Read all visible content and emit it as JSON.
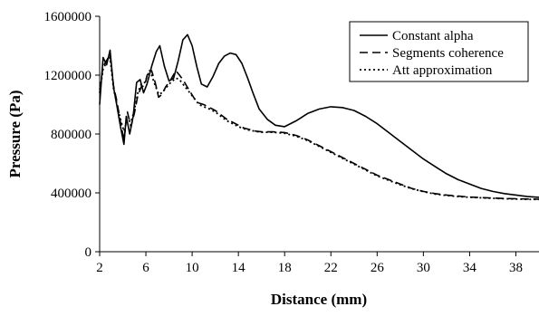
{
  "chart_data": {
    "type": "line",
    "title": "",
    "xlabel": "Distance (mm)",
    "ylabel": "Pressure (Pa)",
    "xlim": [
      2,
      40
    ],
    "ylim": [
      0,
      1600000
    ],
    "x_ticks": [
      2,
      6,
      10,
      14,
      18,
      22,
      26,
      30,
      34,
      38
    ],
    "x_tick_labels": [
      "2",
      "6",
      "10",
      "14",
      "18",
      "22",
      "26",
      "30",
      "34",
      "38"
    ],
    "y_ticks": [
      0,
      400000,
      800000,
      1200000,
      1600000
    ],
    "y_tick_labels": [
      "0",
      "400000",
      "800000",
      "1200000",
      "1600000"
    ],
    "grid": false,
    "legend_position": "top-right",
    "series": [
      {
        "name": "Constant alpha",
        "style": "solid",
        "x": [
          2.0,
          2.3,
          2.6,
          2.9,
          3.2,
          3.5,
          3.8,
          4.1,
          4.3,
          4.6,
          4.9,
          5.2,
          5.5,
          5.8,
          6.1,
          6.5,
          6.9,
          7.2,
          7.6,
          8.0,
          8.4,
          8.8,
          9.2,
          9.6,
          10.0,
          10.4,
          10.8,
          11.3,
          11.8,
          12.3,
          12.8,
          13.3,
          13.8,
          14.3,
          14.8,
          15.3,
          15.8,
          16.5,
          17.2,
          18.0,
          19.0,
          20.0,
          21.0,
          22.0,
          23.0,
          24.0,
          25.0,
          26.0,
          27.0,
          28.0,
          29.0,
          30.0,
          31.0,
          32.0,
          33.0,
          34.0,
          35.0,
          36.0,
          37.0,
          38.0,
          39.0,
          40.0
        ],
        "y": [
          1000000,
          1320000,
          1270000,
          1370000,
          1120000,
          990000,
          850000,
          730000,
          920000,
          800000,
          920000,
          1150000,
          1170000,
          1080000,
          1140000,
          1260000,
          1360000,
          1400000,
          1260000,
          1160000,
          1180000,
          1300000,
          1440000,
          1475000,
          1400000,
          1260000,
          1140000,
          1120000,
          1190000,
          1280000,
          1330000,
          1350000,
          1340000,
          1280000,
          1180000,
          1070000,
          970000,
          900000,
          860000,
          850000,
          890000,
          940000,
          970000,
          985000,
          980000,
          960000,
          920000,
          870000,
          810000,
          750000,
          690000,
          630000,
          580000,
          530000,
          490000,
          460000,
          430000,
          410000,
          395000,
          385000,
          375000,
          370000
        ]
      },
      {
        "name": "Segments coherence",
        "style": "dashed",
        "x": [
          2.0,
          2.3,
          2.6,
          2.9,
          3.2,
          3.5,
          3.8,
          4.1,
          4.4,
          4.7,
          5.0,
          5.3,
          5.6,
          5.9,
          6.2,
          6.5,
          6.8,
          7.1,
          7.4,
          7.7,
          8.0,
          8.3,
          8.6,
          8.9,
          9.2,
          9.5,
          9.8,
          10.2,
          10.6,
          11.0,
          11.5,
          12.0,
          12.5,
          13.0,
          13.5,
          14.0,
          14.5,
          15.0,
          15.5,
          16.0,
          17.0,
          18.0,
          19.0,
          20.0,
          21.0,
          22.0,
          23.0,
          24.0,
          25.0,
          26.0,
          27.0,
          28.0,
          29.0,
          30.0,
          31.0,
          32.0,
          33.0,
          34.0,
          35.0,
          36.0,
          37.0,
          38.0,
          39.0,
          40.0
        ],
        "y": [
          1100000,
          1260000,
          1300000,
          1340000,
          1130000,
          1020000,
          880000,
          760000,
          950000,
          850000,
          940000,
          1060000,
          1120000,
          1130000,
          1230000,
          1230000,
          1150000,
          1050000,
          1070000,
          1120000,
          1150000,
          1190000,
          1230000,
          1200000,
          1170000,
          1130000,
          1090000,
          1040000,
          1010000,
          1000000,
          980000,
          960000,
          930000,
          900000,
          880000,
          860000,
          840000,
          830000,
          820000,
          815000,
          815000,
          810000,
          790000,
          760000,
          720000,
          680000,
          640000,
          600000,
          560000,
          520000,
          490000,
          460000,
          430000,
          410000,
          395000,
          385000,
          378000,
          372000,
          368000,
          365000,
          362000,
          360000,
          358000,
          357000
        ]
      },
      {
        "name": "Att approximation",
        "style": "dotted",
        "x": [
          2.0,
          2.3,
          2.6,
          2.9,
          3.2,
          3.5,
          3.8,
          4.1,
          4.4,
          4.7,
          5.0,
          5.3,
          5.6,
          5.9,
          6.2,
          6.5,
          6.8,
          7.1,
          7.4,
          7.7,
          8.0,
          8.3,
          8.6,
          8.9,
          9.2,
          9.5,
          9.8,
          10.2,
          10.6,
          11.0,
          11.5,
          12.0,
          12.5,
          13.0,
          13.5,
          14.0,
          14.5,
          15.0,
          15.5,
          16.0,
          17.0,
          18.0,
          19.0,
          20.0,
          21.0,
          22.0,
          23.0,
          24.0,
          25.0,
          26.0,
          27.0,
          28.0,
          29.0,
          30.0,
          31.0,
          32.0,
          33.0,
          34.0,
          35.0,
          36.0,
          37.0,
          38.0,
          39.0,
          40.0
        ],
        "y": [
          1080000,
          1240000,
          1290000,
          1320000,
          1110000,
          1000000,
          900000,
          820000,
          900000,
          880000,
          960000,
          1080000,
          1140000,
          1150000,
          1210000,
          1200000,
          1130000,
          1070000,
          1080000,
          1110000,
          1140000,
          1160000,
          1180000,
          1170000,
          1140000,
          1110000,
          1080000,
          1040000,
          1000000,
          985000,
          970000,
          950000,
          920000,
          890000,
          870000,
          850000,
          835000,
          825000,
          818000,
          812000,
          812000,
          805000,
          785000,
          755000,
          715000,
          675000,
          635000,
          595000,
          555000,
          515000,
          485000,
          455000,
          428000,
          408000,
          392000,
          382000,
          375000,
          370000,
          366000,
          363000,
          360000,
          358000,
          356000,
          355000
        ]
      }
    ]
  }
}
